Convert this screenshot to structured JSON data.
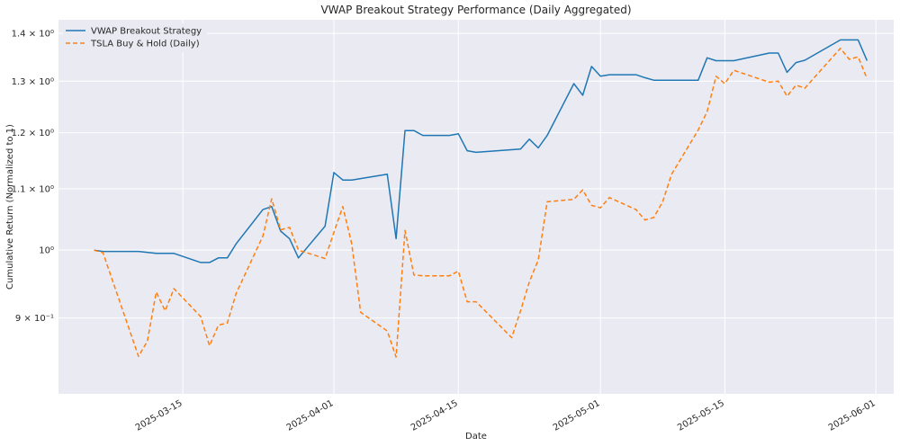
{
  "chart_data": {
    "type": "line",
    "title": "VWAP Breakout Strategy Performance (Daily Aggregated)",
    "xlabel": "Date",
    "ylabel": "Cumulative Return (Normalized to 1)",
    "y_scale": "log",
    "xlim": [
      "2025-03-01",
      "2025-06-03"
    ],
    "ylim": [
      0.8,
      1.43
    ],
    "grid": true,
    "legend_position": "top-left",
    "x_ticks": [
      {
        "date": "2025-03-15",
        "label": "2025-03-15"
      },
      {
        "date": "2025-04-01",
        "label": "2025-04-01"
      },
      {
        "date": "2025-04-15",
        "label": "2025-04-15"
      },
      {
        "date": "2025-05-01",
        "label": "2025-05-01"
      },
      {
        "date": "2025-05-15",
        "label": "2025-05-15"
      },
      {
        "date": "2025-06-01",
        "label": "2025-06-01"
      }
    ],
    "y_ticks": [
      {
        "value": 0.9,
        "label": "9 × 10⁻¹"
      },
      {
        "value": 1.0,
        "label": "10⁰"
      },
      {
        "value": 1.1,
        "label": "1.1 × 10⁰"
      },
      {
        "value": 1.2,
        "label": "1.2 × 10⁰"
      },
      {
        "value": 1.3,
        "label": "1.3 × 10⁰"
      },
      {
        "value": 1.4,
        "label": "1.4 × 10⁰"
      }
    ],
    "series": [
      {
        "name": "VWAP Breakout Strategy",
        "color": "#1f77b4",
        "style": "solid",
        "points": [
          [
            "2025-03-05",
            1.0
          ],
          [
            "2025-03-06",
            0.998
          ],
          [
            "2025-03-10",
            0.998
          ],
          [
            "2025-03-12",
            0.995
          ],
          [
            "2025-03-14",
            0.995
          ],
          [
            "2025-03-17",
            0.981
          ],
          [
            "2025-03-18",
            0.981
          ],
          [
            "2025-03-19",
            0.988
          ],
          [
            "2025-03-20",
            0.988
          ],
          [
            "2025-03-21",
            1.01
          ],
          [
            "2025-03-24",
            1.065
          ],
          [
            "2025-03-25",
            1.07
          ],
          [
            "2025-03-26",
            1.03
          ],
          [
            "2025-03-27",
            1.018
          ],
          [
            "2025-03-28",
            0.988
          ],
          [
            "2025-03-31",
            1.038
          ],
          [
            "2025-04-01",
            1.128
          ],
          [
            "2025-04-02",
            1.115
          ],
          [
            "2025-04-03",
            1.115
          ],
          [
            "2025-04-07",
            1.125
          ],
          [
            "2025-04-08",
            1.018
          ],
          [
            "2025-04-09",
            1.204
          ],
          [
            "2025-04-10",
            1.204
          ],
          [
            "2025-04-11",
            1.195
          ],
          [
            "2025-04-14",
            1.195
          ],
          [
            "2025-04-15",
            1.198
          ],
          [
            "2025-04-16",
            1.167
          ],
          [
            "2025-04-17",
            1.164
          ],
          [
            "2025-04-22",
            1.17
          ],
          [
            "2025-04-23",
            1.188
          ],
          [
            "2025-04-24",
            1.172
          ],
          [
            "2025-04-25",
            1.195
          ],
          [
            "2025-04-28",
            1.295
          ],
          [
            "2025-04-29",
            1.272
          ],
          [
            "2025-04-30",
            1.33
          ],
          [
            "2025-05-01",
            1.31
          ],
          [
            "2025-05-02",
            1.313
          ],
          [
            "2025-05-05",
            1.313
          ],
          [
            "2025-05-06",
            1.307
          ],
          [
            "2025-05-07",
            1.302
          ],
          [
            "2025-05-08",
            1.302
          ],
          [
            "2025-05-12",
            1.302
          ],
          [
            "2025-05-13",
            1.348
          ],
          [
            "2025-05-14",
            1.342
          ],
          [
            "2025-05-15",
            1.342
          ],
          [
            "2025-05-16",
            1.342
          ],
          [
            "2025-05-20",
            1.358
          ],
          [
            "2025-05-21",
            1.358
          ],
          [
            "2025-05-22",
            1.318
          ],
          [
            "2025-05-23",
            1.338
          ],
          [
            "2025-05-24",
            1.343
          ],
          [
            "2025-05-28",
            1.386
          ],
          [
            "2025-05-29",
            1.386
          ],
          [
            "2025-05-30",
            1.386
          ],
          [
            "2025-05-31",
            1.342
          ]
        ]
      },
      {
        "name": "TSLA Buy & Hold (Daily)",
        "color": "#ff7f0e",
        "style": "dashed",
        "points": [
          [
            "2025-03-05",
            1.0
          ],
          [
            "2025-03-06",
            0.996
          ],
          [
            "2025-03-10",
            0.848
          ],
          [
            "2025-03-11",
            0.868
          ],
          [
            "2025-03-12",
            0.937
          ],
          [
            "2025-03-13",
            0.91
          ],
          [
            "2025-03-14",
            0.942
          ],
          [
            "2025-03-17",
            0.902
          ],
          [
            "2025-03-18",
            0.862
          ],
          [
            "2025-03-19",
            0.89
          ],
          [
            "2025-03-20",
            0.893
          ],
          [
            "2025-03-21",
            0.935
          ],
          [
            "2025-03-24",
            1.022
          ],
          [
            "2025-03-25",
            1.083
          ],
          [
            "2025-03-26",
            1.032
          ],
          [
            "2025-03-27",
            1.036
          ],
          [
            "2025-03-28",
            1.0
          ],
          [
            "2025-03-31",
            0.987
          ],
          [
            "2025-04-01",
            1.028
          ],
          [
            "2025-04-02",
            1.07
          ],
          [
            "2025-04-03",
            1.01
          ],
          [
            "2025-04-04",
            0.908
          ],
          [
            "2025-04-07",
            0.882
          ],
          [
            "2025-04-08",
            0.847
          ],
          [
            "2025-04-09",
            1.031
          ],
          [
            "2025-04-10",
            0.962
          ],
          [
            "2025-04-11",
            0.961
          ],
          [
            "2025-04-14",
            0.961
          ],
          [
            "2025-04-15",
            0.968
          ],
          [
            "2025-04-16",
            0.923
          ],
          [
            "2025-04-17",
            0.923
          ],
          [
            "2025-04-21",
            0.873
          ],
          [
            "2025-04-22",
            0.91
          ],
          [
            "2025-04-23",
            0.952
          ],
          [
            "2025-04-24",
            0.985
          ],
          [
            "2025-04-25",
            1.078
          ],
          [
            "2025-04-28",
            1.082
          ],
          [
            "2025-04-29",
            1.098
          ],
          [
            "2025-04-30",
            1.072
          ],
          [
            "2025-05-01",
            1.068
          ],
          [
            "2025-05-02",
            1.085
          ],
          [
            "2025-05-05",
            1.065
          ],
          [
            "2025-05-06",
            1.048
          ],
          [
            "2025-05-07",
            1.052
          ],
          [
            "2025-05-08",
            1.078
          ],
          [
            "2025-05-09",
            1.125
          ],
          [
            "2025-05-12",
            1.205
          ],
          [
            "2025-05-13",
            1.24
          ],
          [
            "2025-05-14",
            1.31
          ],
          [
            "2025-05-15",
            1.295
          ],
          [
            "2025-05-16",
            1.322
          ],
          [
            "2025-05-20",
            1.298
          ],
          [
            "2025-05-21",
            1.3
          ],
          [
            "2025-05-22",
            1.27
          ],
          [
            "2025-05-23",
            1.292
          ],
          [
            "2025-05-24",
            1.286
          ],
          [
            "2025-05-28",
            1.368
          ],
          [
            "2025-05-29",
            1.345
          ],
          [
            "2025-05-30",
            1.35
          ],
          [
            "2025-05-31",
            1.305
          ]
        ]
      }
    ]
  }
}
